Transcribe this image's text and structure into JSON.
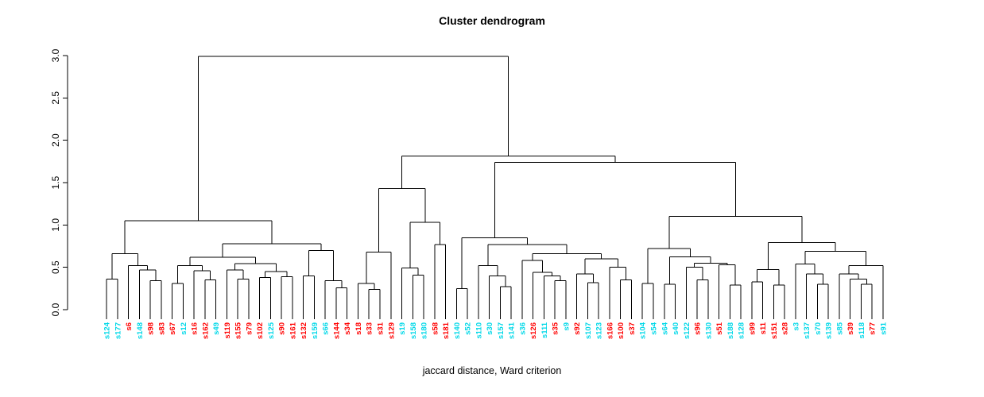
{
  "title": "Cluster dendrogram",
  "xlabel": "jaccard distance, Ward criterion",
  "chart_data": {
    "type": "dendrogram",
    "title": "Cluster dendrogram",
    "xlabel": "jaccard distance, Ward criterion",
    "ylim": [
      0,
      3
    ],
    "y_ticks": [
      "0.0",
      "0.5",
      "1.0",
      "1.5",
      "2.0",
      "2.5",
      "3.0"
    ],
    "grid": false,
    "line_color": "#000000",
    "label_colors": {
      "r": "#ff0000",
      "c": "#00d8e8"
    },
    "leaves": [
      [
        "s124",
        "c"
      ],
      [
        "s177",
        "c"
      ],
      [
        "s6",
        "r"
      ],
      [
        "s148",
        "c"
      ],
      [
        "s98",
        "r"
      ],
      [
        "s83",
        "r"
      ],
      [
        "s67",
        "r"
      ],
      [
        "s12",
        "c"
      ],
      [
        "s16",
        "r"
      ],
      [
        "s162",
        "r"
      ],
      [
        "s49",
        "c"
      ],
      [
        "s119",
        "r"
      ],
      [
        "s155",
        "r"
      ],
      [
        "s79",
        "r"
      ],
      [
        "s102",
        "r"
      ],
      [
        "s125",
        "c"
      ],
      [
        "s90",
        "r"
      ],
      [
        "s161",
        "r"
      ],
      [
        "s132",
        "r"
      ],
      [
        "s159",
        "c"
      ],
      [
        "s66",
        "c"
      ],
      [
        "s144",
        "r"
      ],
      [
        "s34",
        "r"
      ],
      [
        "s18",
        "r"
      ],
      [
        "s33",
        "r"
      ],
      [
        "s31",
        "r"
      ],
      [
        "s129",
        "r"
      ],
      [
        "s19",
        "c"
      ],
      [
        "s158",
        "c"
      ],
      [
        "s180",
        "c"
      ],
      [
        "s58",
        "r"
      ],
      [
        "s181",
        "r"
      ],
      [
        "s140",
        "c"
      ],
      [
        "s52",
        "c"
      ],
      [
        "s110",
        "c"
      ],
      [
        "s30",
        "c"
      ],
      [
        "s157",
        "c"
      ],
      [
        "s141",
        "c"
      ],
      [
        "s36",
        "c"
      ],
      [
        "s126",
        "r"
      ],
      [
        "s111",
        "c"
      ],
      [
        "s35",
        "r"
      ],
      [
        "s9",
        "c"
      ],
      [
        "s92",
        "r"
      ],
      [
        "s107",
        "c"
      ],
      [
        "s123",
        "c"
      ],
      [
        "s166",
        "r"
      ],
      [
        "s100",
        "r"
      ],
      [
        "s37",
        "r"
      ],
      [
        "s104",
        "c"
      ],
      [
        "s54",
        "c"
      ],
      [
        "s64",
        "c"
      ],
      [
        "s40",
        "c"
      ],
      [
        "s122",
        "c"
      ],
      [
        "s96",
        "r"
      ],
      [
        "s130",
        "c"
      ],
      [
        "s51",
        "r"
      ],
      [
        "s188",
        "c"
      ],
      [
        "s128",
        "c"
      ],
      [
        "s99",
        "r"
      ],
      [
        "s11",
        "r"
      ],
      [
        "s151",
        "r"
      ],
      [
        "s28",
        "r"
      ],
      [
        "s3",
        "c"
      ],
      [
        "s137",
        "c"
      ],
      [
        "s70",
        "c"
      ],
      [
        "s139",
        "c"
      ],
      [
        "s85",
        "c"
      ],
      [
        "s39",
        "r"
      ],
      [
        "s118",
        "c"
      ],
      [
        "s77",
        "r"
      ],
      [
        "s91",
        "c"
      ]
    ],
    "tree": {
      "h": 2.99,
      "c": [
        {
          "h": 1.05,
          "c": [
            {
              "h": 0.66,
              "c": [
                {
                  "h": 0.36,
                  "c": [
                    "s124",
                    "s177"
                  ]
                },
                {
                  "h": 0.52,
                  "c": [
                    "s6",
                    {
                      "h": 0.47,
                      "c": [
                        "s148",
                        {
                          "h": 0.34,
                          "c": [
                            "s98",
                            "s83"
                          ]
                        }
                      ]
                    }
                  ]
                }
              ]
            },
            {
              "h": 0.78,
              "c": [
                {
                  "h": 0.62,
                  "c": [
                    {
                      "h": 0.52,
                      "c": [
                        {
                          "h": 0.31,
                          "c": [
                            "s67",
                            "s12"
                          ]
                        },
                        {
                          "h": 0.46,
                          "c": [
                            "s16",
                            {
                              "h": 0.35,
                              "c": [
                                "s162",
                                "s49"
                              ]
                            }
                          ]
                        }
                      ]
                    },
                    {
                      "h": 0.545,
                      "c": [
                        {
                          "h": 0.47,
                          "c": [
                            "s119",
                            {
                              "h": 0.36,
                              "c": [
                                "s155",
                                "s79"
                              ]
                            }
                          ]
                        },
                        {
                          "h": 0.45,
                          "c": [
                            {
                              "h": 0.38,
                              "c": [
                                "s102",
                                "s125"
                              ]
                            },
                            {
                              "h": 0.39,
                              "c": [
                                "s90",
                                "s161"
                              ]
                            }
                          ]
                        }
                      ]
                    }
                  ]
                },
                {
                  "h": 0.7,
                  "c": [
                    {
                      "h": 0.4,
                      "c": [
                        "s132",
                        "s159"
                      ]
                    },
                    {
                      "h": 0.34,
                      "c": [
                        "s66",
                        {
                          "h": 0.26,
                          "c": [
                            "s144",
                            "s34"
                          ]
                        }
                      ]
                    }
                  ]
                }
              ]
            }
          ]
        },
        {
          "h": 1.815,
          "c": [
            {
              "h": 1.43,
              "c": [
                {
                  "h": 0.68,
                  "c": [
                    {
                      "h": 0.31,
                      "c": [
                        "s18",
                        {
                          "h": 0.24,
                          "c": [
                            "s33",
                            "s31"
                          ]
                        }
                      ]
                    },
                    "s129"
                  ]
                },
                {
                  "h": 1.03,
                  "c": [
                    {
                      "h": 0.49,
                      "c": [
                        "s19",
                        {
                          "h": 0.41,
                          "c": [
                            "s158",
                            "s180"
                          ]
                        }
                      ]
                    },
                    {
                      "h": 0.77,
                      "c": [
                        "s58",
                        "s181"
                      ]
                    }
                  ]
                }
              ]
            },
            {
              "h": 1.74,
              "c": [
                {
                  "h": 0.85,
                  "c": [
                    {
                      "h": 0.25,
                      "c": [
                        "s140",
                        "s52"
                      ]
                    },
                    {
                      "h": 0.77,
                      "c": [
                        {
                          "h": 0.52,
                          "c": [
                            "s110",
                            {
                              "h": 0.4,
                              "c": [
                                "s30",
                                {
                                  "h": 0.27,
                                  "c": [
                                    "s157",
                                    "s141"
                                  ]
                                }
                              ]
                            }
                          ]
                        },
                        {
                          "h": 0.66,
                          "c": [
                            {
                              "h": 0.58,
                              "c": [
                                "s36",
                                {
                                  "h": 0.44,
                                  "c": [
                                    "s126",
                                    {
                                      "h": 0.4,
                                      "c": [
                                        "s111",
                                        {
                                          "h": 0.34,
                                          "c": [
                                            "s35",
                                            "s9"
                                          ]
                                        }
                                      ]
                                    }
                                  ]
                                }
                              ]
                            },
                            {
                              "h": 0.6,
                              "c": [
                                {
                                  "h": 0.42,
                                  "c": [
                                    "s92",
                                    {
                                      "h": 0.32,
                                      "c": [
                                        "s107",
                                        "s123"
                                      ]
                                    }
                                  ]
                                },
                                {
                                  "h": 0.5,
                                  "c": [
                                    "s166",
                                    {
                                      "h": 0.35,
                                      "c": [
                                        "s100",
                                        "s37"
                                      ]
                                    }
                                  ]
                                }
                              ]
                            }
                          ]
                        }
                      ]
                    }
                  ]
                },
                {
                  "h": 1.1,
                  "c": [
                    {
                      "h": 0.72,
                      "c": [
                        {
                          "h": 0.31,
                          "c": [
                            "s104",
                            "s54"
                          ]
                        },
                        {
                          "h": 0.625,
                          "c": [
                            {
                              "h": 0.3,
                              "c": [
                                "s64",
                                "s40"
                              ]
                            },
                            {
                              "h": 0.55,
                              "c": [
                                {
                                  "h": 0.5,
                                  "c": [
                                    "s122",
                                    {
                                      "h": 0.35,
                                      "c": [
                                        "s96",
                                        "s130"
                                      ]
                                    }
                                  ]
                                },
                                {
                                  "h": 0.53,
                                  "c": [
                                    "s51",
                                    {
                                      "h": 0.29,
                                      "c": [
                                        "s188",
                                        "s128"
                                      ]
                                    }
                                  ]
                                }
                              ]
                            }
                          ]
                        }
                      ]
                    },
                    {
                      "h": 0.79,
                      "c": [
                        {
                          "h": 0.475,
                          "c": [
                            {
                              "h": 0.33,
                              "c": [
                                "s99",
                                "s11"
                              ]
                            },
                            {
                              "h": 0.29,
                              "c": [
                                "s151",
                                "s28"
                              ]
                            }
                          ]
                        },
                        {
                          "h": 0.69,
                          "c": [
                            {
                              "h": 0.54,
                              "c": [
                                "s3",
                                {
                                  "h": 0.42,
                                  "c": [
                                    "s137",
                                    {
                                      "h": 0.3,
                                      "c": [
                                        "s70",
                                        "s139"
                                      ]
                                    }
                                  ]
                                }
                              ]
                            },
                            {
                              "h": 0.52,
                              "c": [
                                {
                                  "h": 0.42,
                                  "c": [
                                    "s85",
                                    {
                                      "h": 0.36,
                                      "c": [
                                        "s39",
                                        {
                                          "h": 0.3,
                                          "c": [
                                            "s118",
                                            "s77"
                                          ]
                                        }
                                      ]
                                    }
                                  ]
                                },
                                "s91"
                              ]
                            }
                          ]
                        }
                      ]
                    }
                  ]
                }
              ]
            }
          ]
        }
      ]
    }
  }
}
